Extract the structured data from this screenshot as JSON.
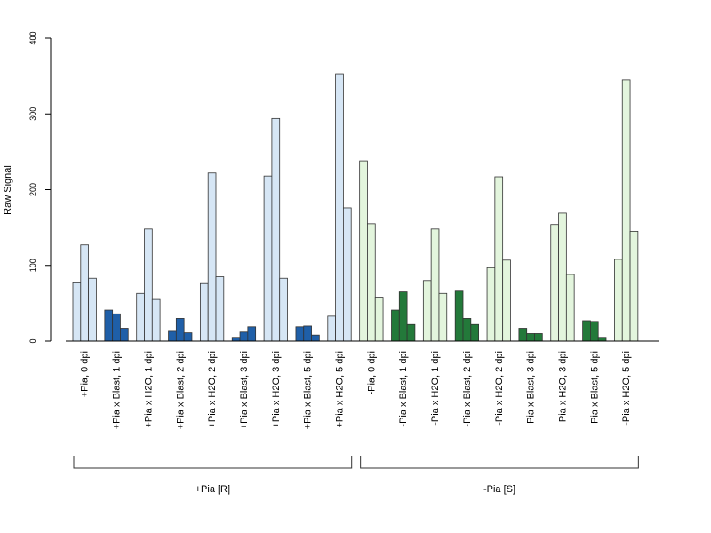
{
  "chart_data": {
    "type": "bar",
    "ylabel": "Raw Signal",
    "ylim": [
      0,
      400
    ],
    "yticks": [
      0,
      100,
      200,
      300,
      400
    ],
    "grid": false,
    "replicates_per_category": 3,
    "colors": {
      "pia_plus_light": "#d6e6f5",
      "pia_plus_dark": "#1f5fa8",
      "pia_minus_light": "#e3f5dd",
      "pia_minus_dark": "#23793a",
      "outline": "#333333"
    },
    "categories": [
      {
        "label": "+Pia, 0 dpi",
        "values": [
          77,
          127,
          83
        ],
        "fill": "pia_plus_light"
      },
      {
        "label": "+Pia x Blast, 1 dpi",
        "values": [
          41,
          36,
          17
        ],
        "fill": "pia_plus_dark"
      },
      {
        "label": "+Pia x H2O, 1 dpi",
        "values": [
          63,
          148,
          55
        ],
        "fill": "pia_plus_light"
      },
      {
        "label": "+Pia x Blast, 2 dpi",
        "values": [
          13,
          30,
          11
        ],
        "fill": "pia_plus_dark"
      },
      {
        "label": "+Pia x H2O, 2 dpi",
        "values": [
          76,
          222,
          85
        ],
        "fill": "pia_plus_light"
      },
      {
        "label": "+Pia x Blast, 3 dpi",
        "values": [
          5,
          12,
          19
        ],
        "fill": "pia_plus_dark"
      },
      {
        "label": "+Pia x H2O, 3 dpi",
        "values": [
          218,
          294,
          83
        ],
        "fill": "pia_plus_light"
      },
      {
        "label": "+Pia x Blast, 5 dpi",
        "values": [
          19,
          20,
          8
        ],
        "fill": "pia_plus_dark"
      },
      {
        "label": "+Pia x H2O, 5 dpi",
        "values": [
          33,
          353,
          176
        ],
        "fill": "pia_plus_light"
      },
      {
        "label": "-Pia, 0 dpi",
        "values": [
          238,
          155,
          58
        ],
        "fill": "pia_minus_light"
      },
      {
        "label": "-Pia x Blast, 1 dpi",
        "values": [
          41,
          65,
          22
        ],
        "fill": "pia_minus_dark"
      },
      {
        "label": "-Pia x H2O, 1 dpi",
        "values": [
          80,
          148,
          63
        ],
        "fill": "pia_minus_light"
      },
      {
        "label": "-Pia x Blast, 2 dpi",
        "values": [
          66,
          30,
          22
        ],
        "fill": "pia_minus_dark"
      },
      {
        "label": "-Pia x H2O, 2 dpi",
        "values": [
          97,
          217,
          107
        ],
        "fill": "pia_minus_light"
      },
      {
        "label": "-Pia x Blast, 3 dpi",
        "values": [
          17,
          10,
          10
        ],
        "fill": "pia_minus_dark"
      },
      {
        "label": "-Pia x H2O, 3 dpi",
        "values": [
          154,
          169,
          88
        ],
        "fill": "pia_minus_light"
      },
      {
        "label": "-Pia x Blast, 5 dpi",
        "values": [
          27,
          26,
          5
        ],
        "fill": "pia_minus_dark"
      },
      {
        "label": "-Pia x H2O, 5 dpi",
        "values": [
          108,
          345,
          145
        ],
        "fill": "pia_minus_light"
      }
    ],
    "groups": [
      {
        "label": "+Pia [R]",
        "first_category": 0,
        "last_category": 8
      },
      {
        "label": "-Pia [S]",
        "first_category": 9,
        "last_category": 17
      }
    ]
  }
}
